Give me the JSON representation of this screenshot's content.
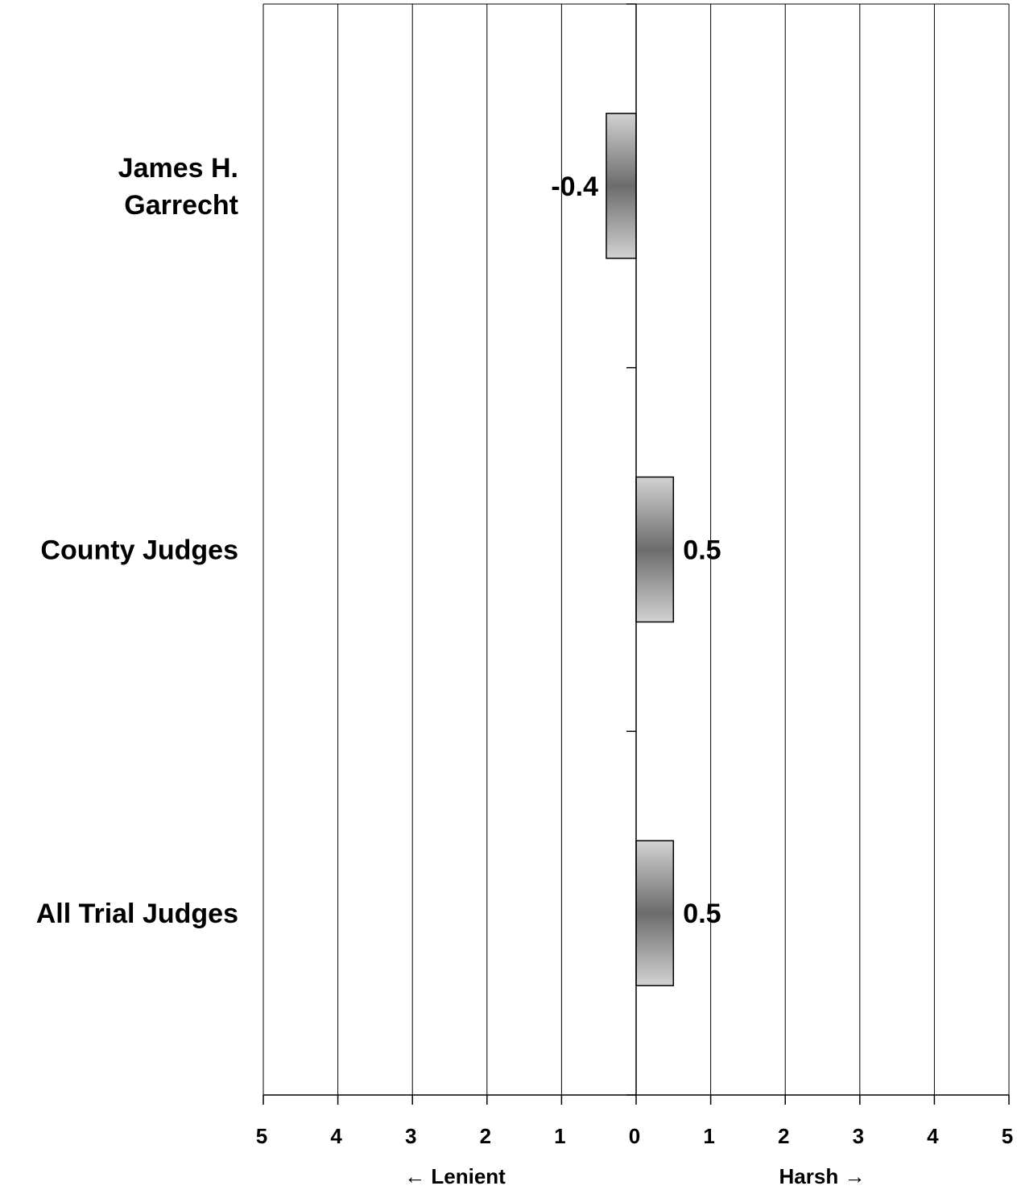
{
  "chart_data": {
    "type": "bar",
    "orientation": "horizontal",
    "categories": [
      "James H. Garrecht",
      "County Judges",
      "All Trial Judges"
    ],
    "category_lines": [
      [
        "James H.",
        "Garrecht"
      ],
      [
        "County Judges"
      ],
      [
        "All Trial Judges"
      ]
    ],
    "values": [
      -0.4,
      0.5,
      0.5
    ],
    "data_labels": [
      "-0.4",
      "0.5",
      "0.5"
    ],
    "xlim": [
      -5,
      5
    ],
    "x_ticks": [
      -5,
      -4,
      -3,
      -2,
      -1,
      0,
      1,
      2,
      3,
      4,
      5
    ],
    "x_tick_labels": [
      "5",
      "4",
      "3",
      "2",
      "1",
      "0",
      "1",
      "2",
      "3",
      "4",
      "5"
    ],
    "direction_labels": {
      "left": "← Lenient",
      "right": "Harsh →"
    },
    "grid": true,
    "bar_fill": "gradient-gray",
    "colors": {
      "bar_light": "#cfcfcf",
      "bar_dark": "#6e6e6e",
      "grid": "#000000"
    }
  }
}
